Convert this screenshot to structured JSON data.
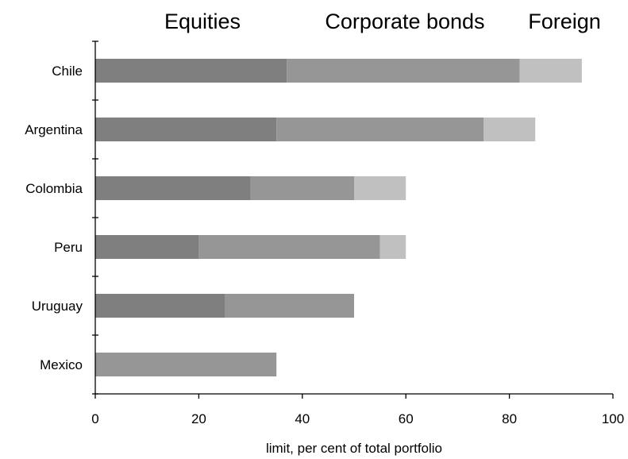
{
  "chart_data": {
    "type": "bar",
    "orientation": "horizontal",
    "stacked": true,
    "categories": [
      "Chile",
      "Argentina",
      "Colombia",
      "Peru",
      "Uruguay",
      "Mexico"
    ],
    "series": [
      {
        "name": "Equities",
        "color": "#7f7f7f",
        "values": [
          37,
          35,
          30,
          20,
          25,
          0
        ]
      },
      {
        "name": "Corporate bonds",
        "color": "#969696",
        "values": [
          45,
          40,
          20,
          35,
          25,
          35
        ]
      },
      {
        "name": "Foreign",
        "color": "#c0c0c0",
        "values": [
          12,
          10,
          10,
          5,
          0,
          0
        ]
      }
    ],
    "xlabel": "limit, per cent of total portfolio",
    "xlim": [
      0,
      100
    ],
    "xticks": [
      "0",
      "20",
      "40",
      "60",
      "80",
      "100"
    ],
    "legend_position": "top",
    "grid": false
  }
}
